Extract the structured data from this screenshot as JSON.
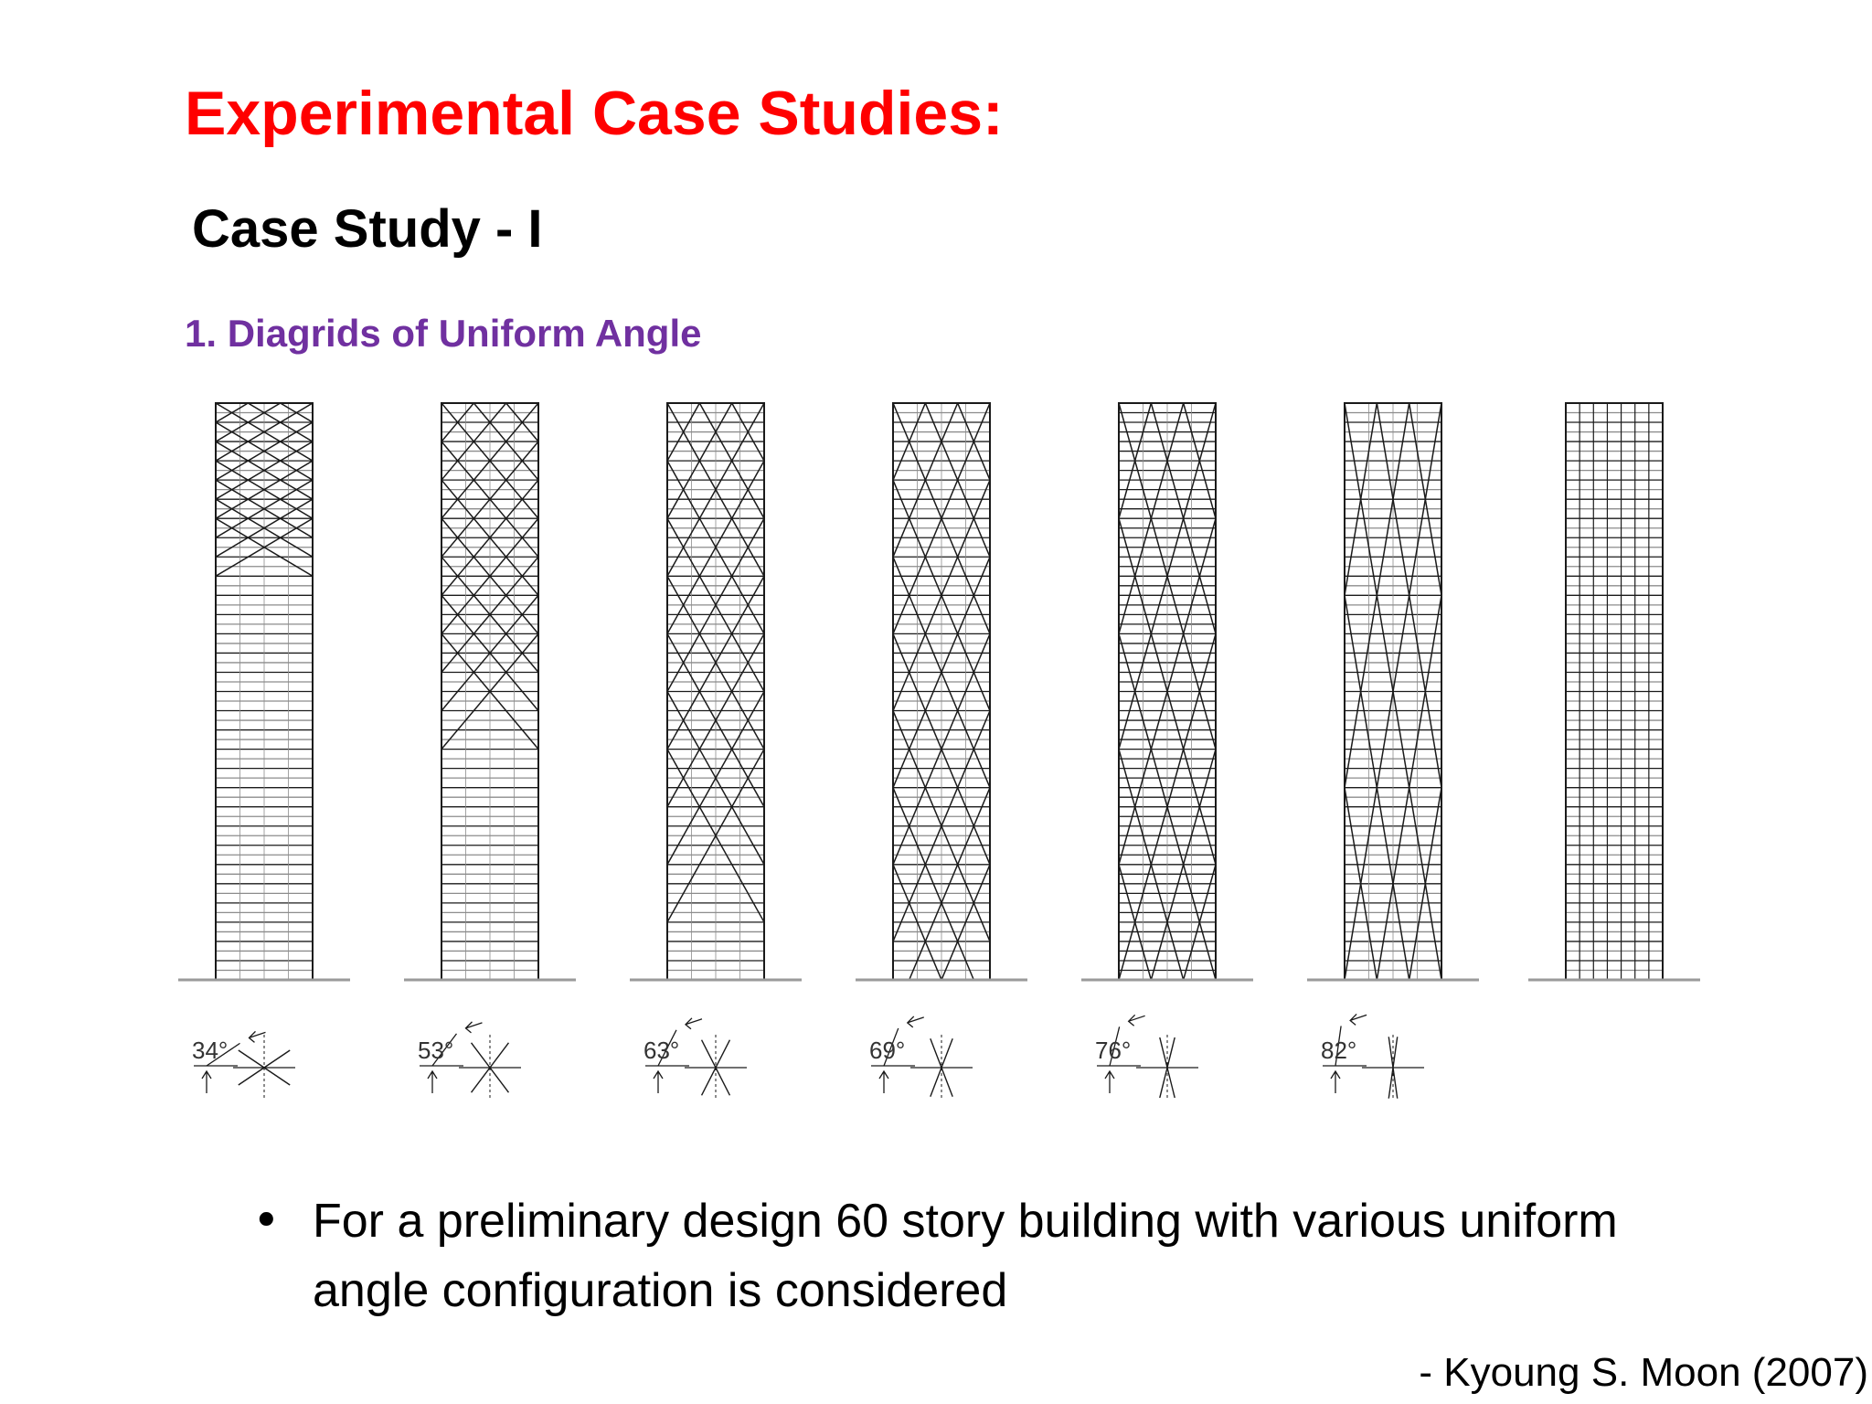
{
  "slide": {
    "title": "Experimental Case Studies:",
    "subtitle": "Case Study - I",
    "section_heading": "1.  Diagrids of Uniform Angle",
    "bullet_symbol": "•",
    "bullet_text": "For a preliminary design 60 story building with various uniform angle configuration is considered",
    "citation": "-  Kyoung S. Moon (2007)"
  },
  "diagram": {
    "stories": 60,
    "towers": [
      {
        "angle": 34,
        "angle_label": "34°",
        "modules": 30
      },
      {
        "angle": 53,
        "angle_label": "53°",
        "modules": 15
      },
      {
        "angle": 63,
        "angle_label": "63°",
        "modules": 10
      },
      {
        "angle": 69,
        "angle_label": "69°",
        "modules": 7.5
      },
      {
        "angle": 76,
        "angle_label": "76°",
        "modules": 5
      },
      {
        "angle": 82,
        "angle_label": "82°",
        "modules": 3
      },
      {
        "angle": null,
        "angle_label": "",
        "modules": 0
      }
    ],
    "colors": {
      "structure": "#1a1a1a",
      "ground": "#9a9a9a",
      "floor_light": "#8c8c8c"
    }
  }
}
